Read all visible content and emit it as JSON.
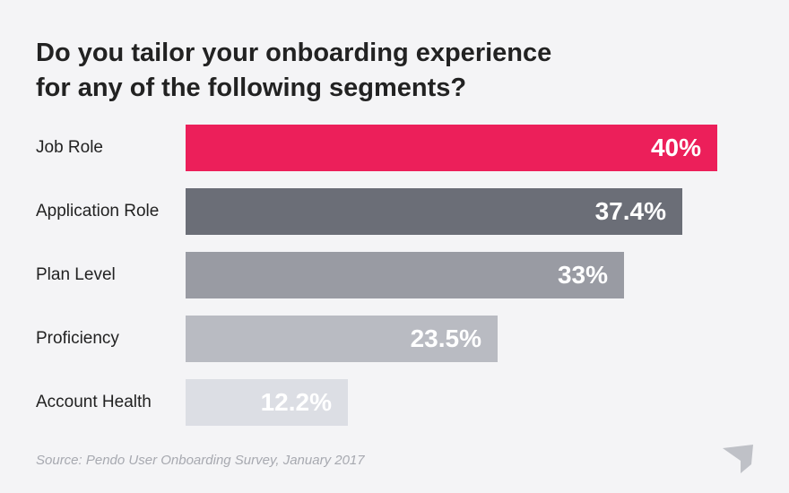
{
  "title_lines": [
    "Do you tailor your onboarding experience",
    "for any of the following segments?"
  ],
  "chart_data": {
    "type": "bar",
    "orientation": "horizontal",
    "categories": [
      "Job Role",
      "Application Role",
      "Plan Level",
      "Proficiency",
      "Account Health"
    ],
    "values": [
      40,
      37.4,
      33,
      23.5,
      12.2
    ],
    "value_labels": [
      "40%",
      "37.4%",
      "33%",
      "23.5%",
      "12.2%"
    ],
    "bar_colors": [
      "#ec1f5a",
      "#6b6e77",
      "#999ba3",
      "#b9bbc2",
      "#dcdee4"
    ],
    "xlim": [
      0,
      40
    ],
    "grid": false,
    "legend": "none"
  },
  "source": "Source: Pendo User Onboarding Survey, January 2017",
  "logo_icon": "pendo-logo-icon"
}
